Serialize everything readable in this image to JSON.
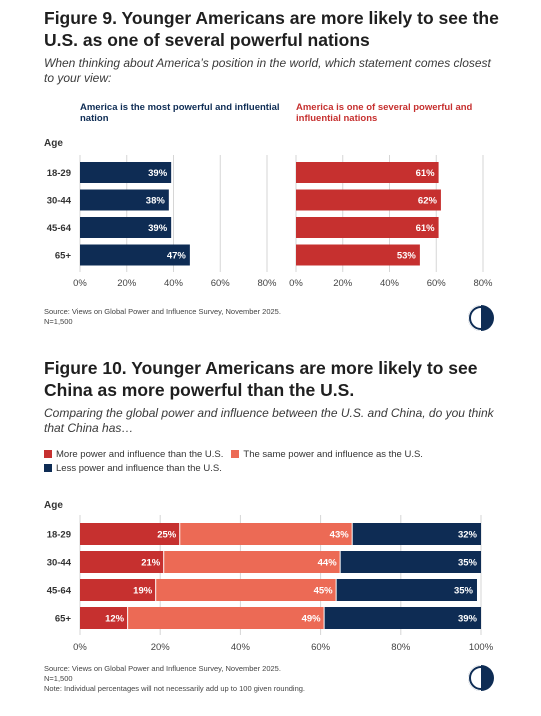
{
  "figure9": {
    "title": "Figure 9. Younger Americans are more likely to see the U.S. as one of several powerful nations",
    "subtitle": "When thinking about America’s position in the world, which statement comes closest to your view:",
    "left_heading": "America is the most powerful and influential nation",
    "right_heading": "America is one of several powerful and influential nations",
    "age_label": "Age",
    "source": "Source: Views on Global Power and Influence Survey, November 2025.",
    "n": "N=1,500"
  },
  "figure10": {
    "title": "Figure 10. Younger Americans are more likely to see China as more powerful than the U.S.",
    "subtitle": "Comparing the global power and influence between the U.S. and China, do you think that China has…",
    "age_label": "Age",
    "source": "Source: Views on Global Power and Influence Survey, November 2025.",
    "n": "N=1,500",
    "note": "Note: Individual percentages will not necessarily add up to 100 given rounding."
  },
  "colors": {
    "navy": "#0e2c54",
    "red": "#c6302f",
    "salmon": "#ec6a55",
    "grid": "#d6d6d6"
  },
  "chart_data": [
    {
      "type": "bar",
      "orientation": "horizontal",
      "panel": "left",
      "categories": [
        "18-29",
        "30-44",
        "45-64",
        "65+"
      ],
      "series": [
        {
          "name": "America is the most powerful and influential nation",
          "values": [
            39,
            38,
            39,
            47
          ]
        }
      ],
      "xlim": [
        0,
        80
      ],
      "ticks": [
        "0%",
        "20%",
        "40%",
        "60%",
        "80%"
      ],
      "grid": true
    },
    {
      "type": "bar",
      "orientation": "horizontal",
      "panel": "right",
      "categories": [
        "18-29",
        "30-44",
        "45-64",
        "65+"
      ],
      "series": [
        {
          "name": "America is one of several powerful and influential nations",
          "values": [
            61,
            62,
            61,
            53
          ]
        }
      ],
      "xlim": [
        0,
        80
      ],
      "ticks": [
        "0%",
        "20%",
        "40%",
        "60%",
        "80%"
      ],
      "grid": true
    },
    {
      "type": "bar",
      "orientation": "horizontal",
      "stacked": true,
      "categories": [
        "18-29",
        "30-44",
        "45-64",
        "65+"
      ],
      "series": [
        {
          "name": "More power and influence than the U.S.",
          "values": [
            25,
            21,
            19,
            12
          ]
        },
        {
          "name": "The same power and influence as the U.S.",
          "values": [
            43,
            44,
            45,
            49
          ]
        },
        {
          "name": "Less power and influence than the U.S.",
          "values": [
            32,
            35,
            35,
            39
          ]
        }
      ],
      "xlim": [
        0,
        100
      ],
      "ticks": [
        "0%",
        "20%",
        "40%",
        "60%",
        "80%",
        "100%"
      ],
      "legend": "top-left",
      "grid": true
    }
  ]
}
